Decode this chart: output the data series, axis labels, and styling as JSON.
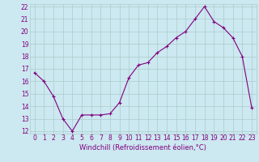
{
  "x": [
    0,
    1,
    2,
    3,
    4,
    5,
    6,
    7,
    8,
    9,
    10,
    11,
    12,
    13,
    14,
    15,
    16,
    17,
    18,
    19,
    20,
    21,
    22,
    23
  ],
  "y": [
    16.7,
    16.0,
    14.8,
    13.0,
    12.0,
    13.3,
    13.3,
    13.3,
    13.4,
    14.3,
    16.3,
    17.3,
    17.5,
    18.3,
    18.8,
    19.5,
    20.0,
    21.0,
    22.0,
    20.8,
    20.3,
    19.5,
    18.0,
    13.9
  ],
  "line_color": "#800080",
  "marker": "+",
  "marker_size": 3.5,
  "marker_linewidth": 0.8,
  "line_width": 0.8,
  "bg_color": "#cce8f0",
  "grid_color": "#aacccc",
  "xlabel": "Windchill (Refroidissement éolien,°C)",
  "xlabel_color": "#800080",
  "tick_color": "#800080",
  "ylim": [
    12,
    22
  ],
  "xlim": [
    -0.5,
    23.5
  ],
  "yticks": [
    12,
    13,
    14,
    15,
    16,
    17,
    18,
    19,
    20,
    21,
    22
  ],
  "xticks": [
    0,
    1,
    2,
    3,
    4,
    5,
    6,
    7,
    8,
    9,
    10,
    11,
    12,
    13,
    14,
    15,
    16,
    17,
    18,
    19,
    20,
    21,
    22,
    23
  ],
  "tick_fontsize": 5.5,
  "xlabel_fontsize": 6.0
}
